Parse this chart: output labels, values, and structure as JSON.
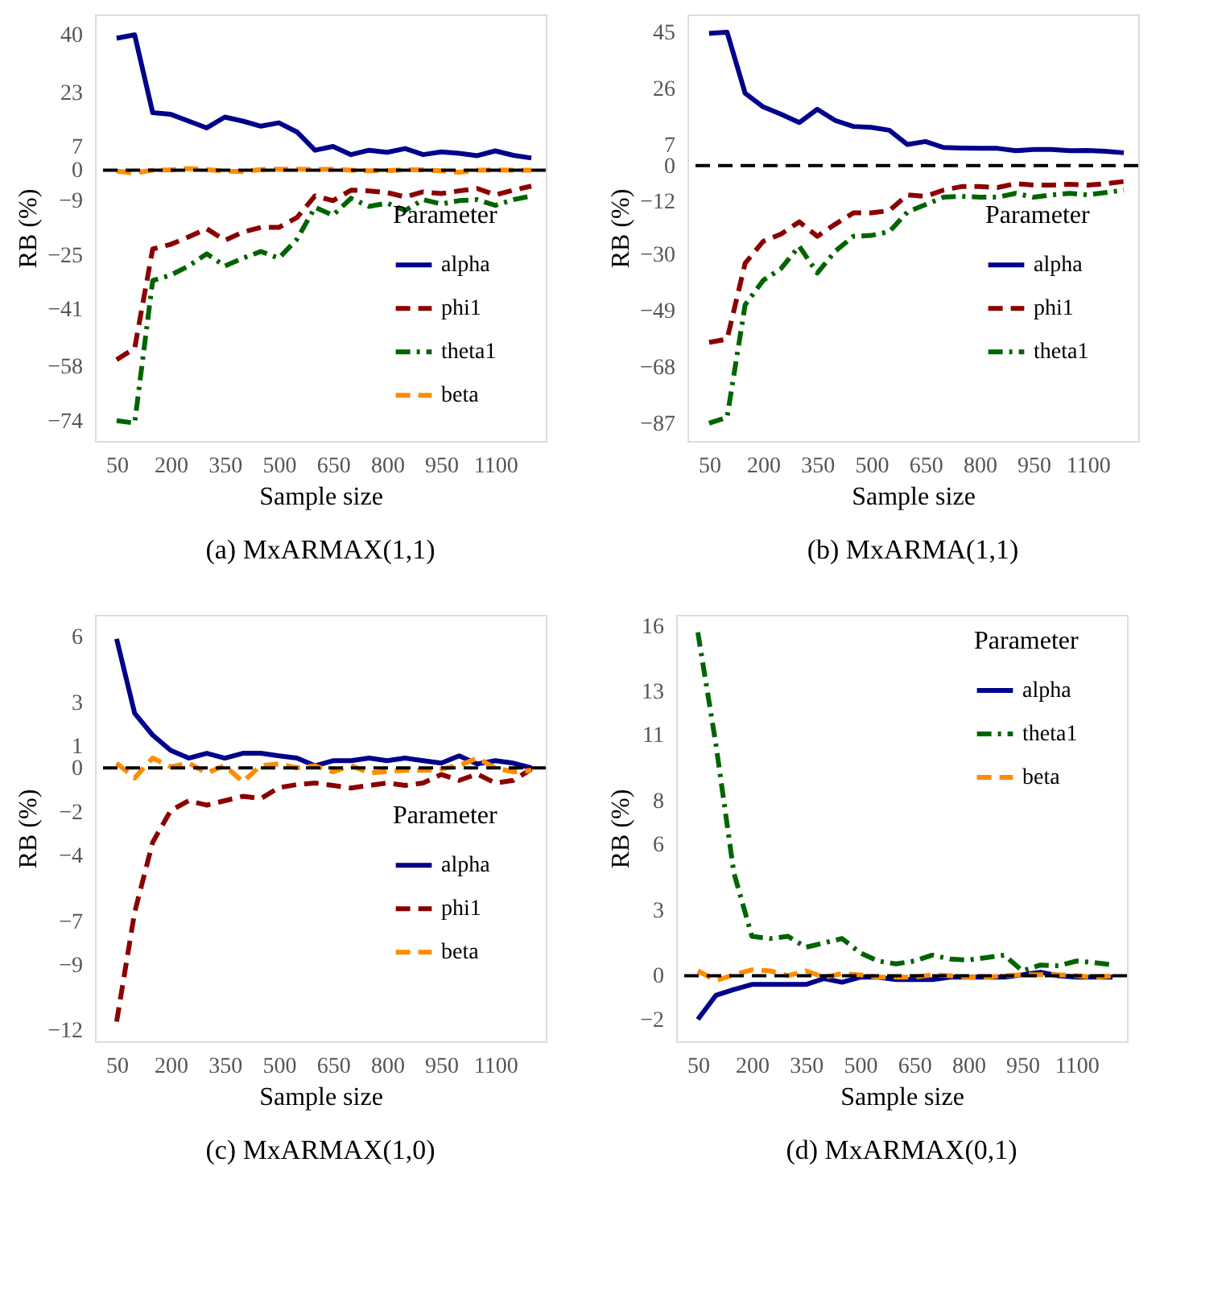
{
  "chart_data": [
    {
      "type": "line",
      "title": "(a) MxARMAX(1,1)",
      "xlabel": "Sample size",
      "ylabel": "RB (%)",
      "legend_title": "Parameter",
      "legend": "right",
      "x": [
        50,
        100,
        150,
        200,
        250,
        300,
        350,
        400,
        450,
        500,
        550,
        600,
        650,
        700,
        750,
        800,
        850,
        900,
        950,
        1000,
        1050,
        1100,
        1150,
        1200
      ],
      "xlim": [
        -10,
        1240
      ],
      "xticks": [
        50,
        200,
        350,
        500,
        650,
        800,
        950,
        1100
      ],
      "ylim": [
        -80,
        46
      ],
      "yticks": [
        40,
        23,
        7,
        0,
        -9,
        -25,
        -41,
        -58,
        -74
      ],
      "ref_lines": [
        {
          "axis": "y",
          "value": 0,
          "color": "#000000",
          "line_style": "dashed"
        }
      ],
      "series": [
        {
          "name": "alpha",
          "color": "#00008b",
          "line_style": "solid",
          "values": [
            39,
            40,
            17,
            16.5,
            14.5,
            12.5,
            15.7,
            14.5,
            13,
            14,
            11.3,
            5.9,
            7,
            4.6,
            5.9,
            5.3,
            6.4,
            4.6,
            5.4,
            5,
            4.3,
            5.7,
            4.4,
            3.6
          ]
        },
        {
          "name": "phi1",
          "color": "#8b0000",
          "line_style": "dashed",
          "values": [
            -56,
            -52.6,
            -23.3,
            -21.9,
            -19.7,
            -17.3,
            -20.7,
            -18.3,
            -16.9,
            -16.9,
            -14,
            -7.6,
            -9,
            -5.9,
            -6.1,
            -6.6,
            -7.9,
            -6.4,
            -6.9,
            -6.1,
            -5.4,
            -7.3,
            -5.9,
            -4.7
          ]
        },
        {
          "name": "theta1",
          "color": "#006400",
          "line_style": "dashdot",
          "values": [
            -74,
            -74.7,
            -32.6,
            -31,
            -28.3,
            -24.7,
            -28.3,
            -26,
            -24,
            -26,
            -20.4,
            -11,
            -13.3,
            -8.3,
            -10.7,
            -9.7,
            -11.9,
            -8.7,
            -10,
            -9,
            -8.7,
            -10.4,
            -8.7,
            -7.6
          ]
        },
        {
          "name": "beta",
          "color": "#ff8c00",
          "line_style": "dashed",
          "values": [
            -0.3,
            -0.8,
            0,
            0.1,
            0.5,
            0.2,
            -0.3,
            -0.4,
            0.2,
            0.3,
            0.3,
            0.2,
            0.3,
            0,
            -0.2,
            -0.1,
            0.1,
            0.1,
            -0.2,
            -0.6,
            0,
            0.1,
            0,
            0
          ]
        }
      ]
    },
    {
      "type": "line",
      "title": "(b) MxARMA(1,1)",
      "xlabel": "Sample size",
      "ylabel": "RB (%)",
      "legend_title": "Parameter",
      "legend": "right",
      "x": [
        50,
        100,
        150,
        200,
        250,
        300,
        350,
        400,
        450,
        500,
        550,
        600,
        650,
        700,
        750,
        800,
        850,
        900,
        950,
        1000,
        1050,
        1100,
        1150,
        1200
      ],
      "xlim": [
        -10,
        1240
      ],
      "xticks": [
        50,
        200,
        350,
        500,
        650,
        800,
        950,
        1100
      ],
      "ylim": [
        -93,
        51
      ],
      "yticks": [
        45,
        26,
        7,
        0,
        -12,
        -30,
        -49,
        -68,
        -87
      ],
      "ref_lines": [
        {
          "axis": "y",
          "value": 0,
          "color": "#000000",
          "line_style": "dashed"
        }
      ],
      "series": [
        {
          "name": "alpha",
          "color": "#00008b",
          "line_style": "solid",
          "values": [
            44.6,
            45,
            24.4,
            19.8,
            17.3,
            14.5,
            19,
            15.2,
            13.2,
            12.9,
            11.9,
            7.1,
            8.1,
            6.1,
            5.9,
            5.8,
            5.8,
            5,
            5.4,
            5.4,
            5,
            5.1,
            4.8,
            4.3
          ]
        },
        {
          "name": "phi1",
          "color": "#8b0000",
          "line_style": "dashed",
          "values": [
            -59.7,
            -58.6,
            -33,
            -25.6,
            -23.1,
            -19,
            -23.9,
            -19.8,
            -16,
            -16,
            -15.2,
            -9.9,
            -10.4,
            -8.3,
            -7.1,
            -7.1,
            -7.4,
            -6.1,
            -6.6,
            -6.6,
            -6.3,
            -6.6,
            -6.1,
            -5.4
          ]
        },
        {
          "name": "theta1",
          "color": "#006400",
          "line_style": "dashdot",
          "values": [
            -87,
            -85,
            -47,
            -38.8,
            -34.7,
            -27.2,
            -36.3,
            -28.9,
            -23.9,
            -23.6,
            -22.3,
            -15.7,
            -13.2,
            -10.7,
            -10.4,
            -10.7,
            -10.7,
            -9.4,
            -10.7,
            -9.9,
            -9.4,
            -9.9,
            -9.1,
            -8.3
          ]
        }
      ]
    },
    {
      "type": "line",
      "title": "(c) MxARMAX(1,0)",
      "xlabel": "Sample size",
      "ylabel": "RB (%)",
      "legend_title": "Parameter",
      "legend": "right",
      "x": [
        50,
        100,
        150,
        200,
        250,
        300,
        350,
        400,
        450,
        500,
        550,
        600,
        650,
        700,
        750,
        800,
        850,
        900,
        950,
        1000,
        1050,
        1100,
        1150,
        1200
      ],
      "xlim": [
        -10,
        1240
      ],
      "xticks": [
        50,
        200,
        350,
        500,
        650,
        800,
        950,
        1100
      ],
      "ylim": [
        -12.5,
        7
      ],
      "yticks": [
        6,
        3,
        1,
        0,
        -2,
        -4,
        -7,
        -9,
        -12
      ],
      "ref_lines": [
        {
          "axis": "y",
          "value": 0,
          "color": "#000000",
          "line_style": "dashed"
        }
      ],
      "series": [
        {
          "name": "alpha",
          "color": "#00008b",
          "line_style": "solid",
          "values": [
            5.9,
            2.5,
            1.5,
            0.8,
            0.45,
            0.67,
            0.45,
            0.67,
            0.67,
            0.55,
            0.45,
            0.1,
            0.33,
            0.33,
            0.45,
            0.33,
            0.45,
            0.33,
            0.22,
            0.55,
            0.18,
            0.33,
            0.22,
            0
          ]
        },
        {
          "name": "phi1",
          "color": "#8b0000",
          "line_style": "dashed",
          "values": [
            -11.6,
            -6.6,
            -3.4,
            -1.95,
            -1.5,
            -1.7,
            -1.5,
            -1.3,
            -1.4,
            -0.9,
            -0.76,
            -0.69,
            -0.8,
            -0.92,
            -0.8,
            -0.69,
            -0.8,
            -0.69,
            -0.3,
            -0.57,
            -0.28,
            -0.69,
            -0.57,
            -0.05
          ]
        },
        {
          "name": "beta",
          "color": "#ff8c00",
          "line_style": "dashed",
          "values": [
            0.22,
            -0.46,
            0.45,
            0.05,
            0.22,
            -0.23,
            0.11,
            -0.64,
            0.11,
            0.18,
            0,
            0.1,
            -0.18,
            0.11,
            -0.23,
            -0.16,
            -0.11,
            -0.11,
            -0.05,
            0.11,
            0.45,
            0,
            -0.18,
            -0.11
          ]
        }
      ]
    },
    {
      "type": "line",
      "title": "(d) MxARMAX(0,1)",
      "xlabel": "Sample size",
      "ylabel": "RB (%)",
      "legend_title": "Parameter",
      "legend": "top right",
      "x": [
        50,
        100,
        150,
        200,
        250,
        300,
        350,
        400,
        450,
        500,
        550,
        600,
        650,
        700,
        750,
        800,
        850,
        900,
        950,
        1000,
        1050,
        1100,
        1150,
        1200
      ],
      "xlim": [
        -10,
        1240
      ],
      "xticks": [
        50,
        200,
        350,
        500,
        650,
        800,
        950,
        1100
      ],
      "ylim": [
        -3,
        16.5
      ],
      "yticks": [
        16,
        13,
        11,
        8,
        6,
        3,
        0,
        -2
      ],
      "ref_lines": [
        {
          "axis": "y",
          "value": 0,
          "color": "#000000",
          "line_style": "dashed"
        }
      ],
      "series": [
        {
          "name": "alpha",
          "color": "#00008b",
          "line_style": "solid",
          "values": [
            -2,
            -0.9,
            -0.63,
            -0.4,
            -0.4,
            -0.4,
            -0.4,
            -0.13,
            -0.3,
            -0.07,
            -0.07,
            -0.18,
            -0.18,
            -0.18,
            -0.07,
            -0.07,
            -0.07,
            -0.07,
            0.04,
            0.16,
            0,
            -0.07,
            -0.07,
            -0.07
          ]
        },
        {
          "name": "theta1",
          "color": "#006400",
          "line_style": "dashdot",
          "values": [
            15.7,
            10.6,
            4.7,
            1.8,
            1.7,
            1.8,
            1.3,
            1.5,
            1.7,
            1.05,
            0.67,
            0.54,
            0.67,
            0.94,
            0.76,
            0.72,
            0.83,
            0.94,
            0.22,
            0.49,
            0.45,
            0.67,
            0.6,
            0.49
          ]
        },
        {
          "name": "beta",
          "color": "#ff8c00",
          "line_style": "dashed",
          "values": [
            0.22,
            -0.22,
            0.04,
            0.27,
            0.22,
            0,
            0.22,
            -0.07,
            0.09,
            0.04,
            -0.07,
            -0.07,
            -0.07,
            0.04,
            0,
            -0.07,
            -0.07,
            0,
            0.04,
            0.04,
            0.04,
            0,
            -0.07,
            0
          ]
        }
      ]
    }
  ]
}
